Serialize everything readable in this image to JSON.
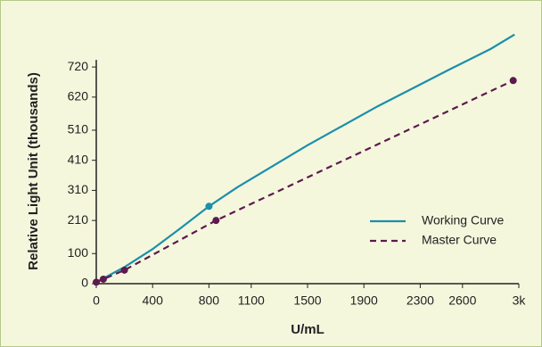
{
  "chart_data": {
    "type": "line",
    "xlabel": "U/mL",
    "ylabel": "Relative Light Unit (thousands)",
    "xlim": [
      0,
      3000
    ],
    "ylim": [
      0,
      830
    ],
    "xticks": [
      0,
      400,
      800,
      1100,
      1500,
      1900,
      2300,
      2600,
      {
        "value": 3000,
        "label": "3k"
      }
    ],
    "yticks": [
      0,
      100,
      210,
      310,
      410,
      510,
      620,
      720
    ],
    "legend": "lower-right",
    "series": [
      {
        "name": "Working Curve",
        "color": "#1b8fab",
        "dash": false,
        "x": [
          0,
          200,
          400,
          600,
          800,
          1000,
          1500,
          2000,
          2500,
          2800,
          2970
        ],
        "values": [
          5,
          55,
          115,
          185,
          257,
          320,
          460,
          590,
          710,
          780,
          828
        ],
        "markers": [
          4
        ]
      },
      {
        "name": "Master Curve",
        "color": "#5c1a4e",
        "dash": true,
        "x": [
          0,
          50,
          200,
          850,
          2960
        ],
        "values": [
          5,
          15,
          45,
          210,
          675
        ],
        "markers": [
          0,
          1,
          2,
          3,
          4
        ]
      }
    ]
  }
}
